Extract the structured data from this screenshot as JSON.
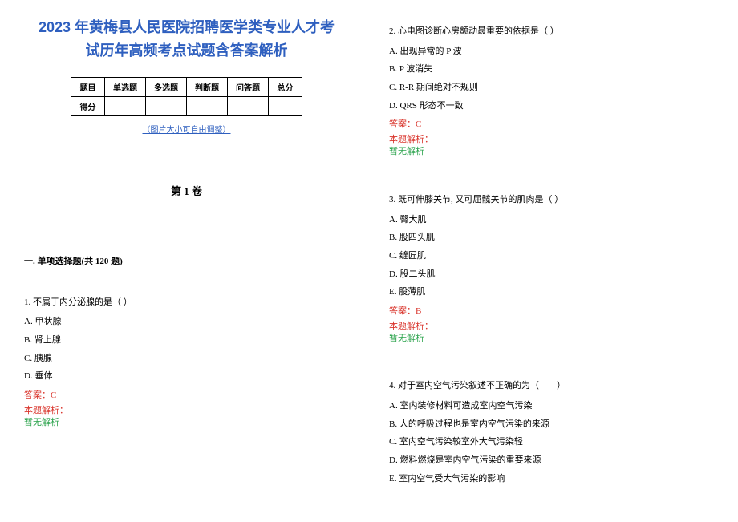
{
  "title_line1": "2023 年黄梅县人民医院招聘医学类专业人才考",
  "title_line2": "试历年高频考点试题含答案解析",
  "table": {
    "headers": [
      "题目",
      "单选题",
      "多选题",
      "判断题",
      "问答题",
      "总分"
    ],
    "row_label": "得分"
  },
  "img_note": "（图片大小可自由调整）",
  "section": "第 1 卷",
  "category": "一. 单项选择题(共 120 题)",
  "answer_prefix": "答案：",
  "explain_label": "本题解析：",
  "explain_body": "暂无解析",
  "q1": {
    "stem": "1. 不属于内分泌腺的是（ ）",
    "opts": [
      "A. 甲状腺",
      "B. 肾上腺",
      "C. 胰腺",
      "D. 垂体"
    ],
    "ans": "C"
  },
  "q2": {
    "stem": "2. 心电图诊断心房颤动最重要的依据是（ ）",
    "opts": [
      "A. 出现异常的 P 波",
      "B. P 波消失",
      "C. R-R 期间绝对不规则",
      "D. QRS 形态不一致"
    ],
    "ans": "C"
  },
  "q3": {
    "stem": "3. 既可伸膝关节, 又可屈髋关节的肌肉是（ ）",
    "opts": [
      "A. 臀大肌",
      "B. 股四头肌",
      "C. 缝匠肌",
      "D. 股二头肌",
      "E. 股薄肌"
    ],
    "ans": "B"
  },
  "q4": {
    "stem": "4. 对于室内空气污染叙述不正确的为（　　）",
    "opts": [
      "A. 室内装修材料可造成室内空气污染",
      "B. 人的呼吸过程也是室内空气污染的来源",
      "C. 室内空气污染较室外大气污染轻",
      "D. 燃料燃烧是室内空气污染的重要来源",
      "E. 室内空气受大气污染的影响"
    ]
  }
}
